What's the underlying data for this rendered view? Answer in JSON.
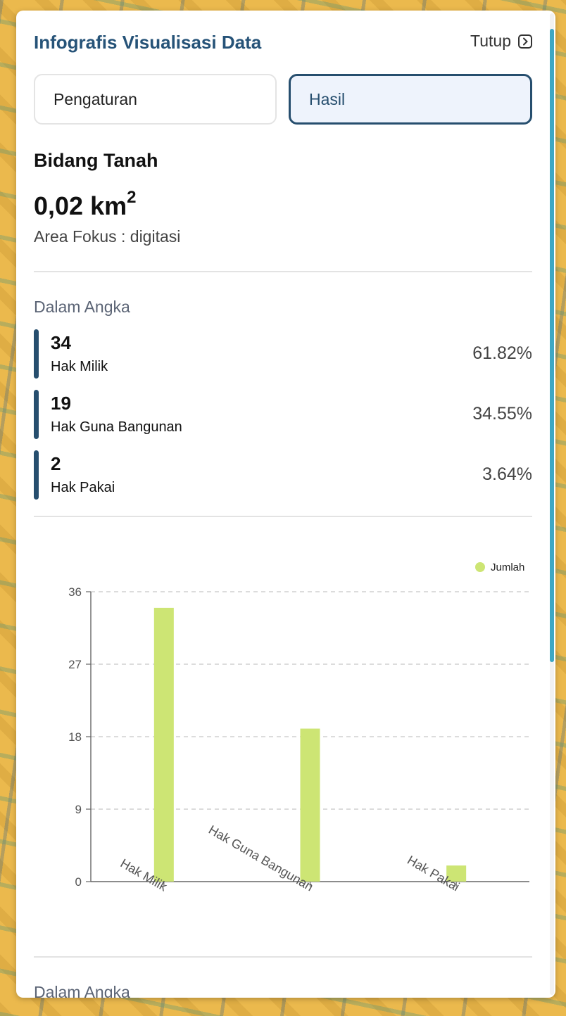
{
  "header": {
    "title": "Infografis Visualisasi Data",
    "close_label": "Tutup"
  },
  "tabs": [
    {
      "label": "Pengaturan",
      "active": false
    },
    {
      "label": "Hasil",
      "active": true
    }
  ],
  "summary": {
    "title": "Bidang Tanah",
    "area_value": "0,02 km",
    "area_exponent": "2",
    "caption": "Area Fokus : digitasi"
  },
  "stats": {
    "heading": "Dalam Angka",
    "items": [
      {
        "count": "34",
        "label": "Hak Milik",
        "percent": "61.82%"
      },
      {
        "count": "19",
        "label": "Hak Guna Bangunan",
        "percent": "34.55%"
      },
      {
        "count": "2",
        "label": "Hak Pakai",
        "percent": "3.64%"
      }
    ]
  },
  "next_heading": "Dalam Angka",
  "colors": {
    "accent": "#264e6e",
    "bar": "#cde574",
    "title": "#265378",
    "scroll": "#3ea7c3"
  },
  "chart_data": {
    "type": "bar",
    "categories": [
      "Hak Milik",
      "Hak Guna Bangunan",
      "Hak Pakai"
    ],
    "series": [
      {
        "name": "Jumlah",
        "values": [
          34,
          19,
          2
        ]
      }
    ],
    "ylim": [
      0,
      36
    ],
    "yticks": [
      "0",
      "9",
      "18",
      "27",
      "36"
    ],
    "grid": true,
    "legend": "top-right"
  }
}
